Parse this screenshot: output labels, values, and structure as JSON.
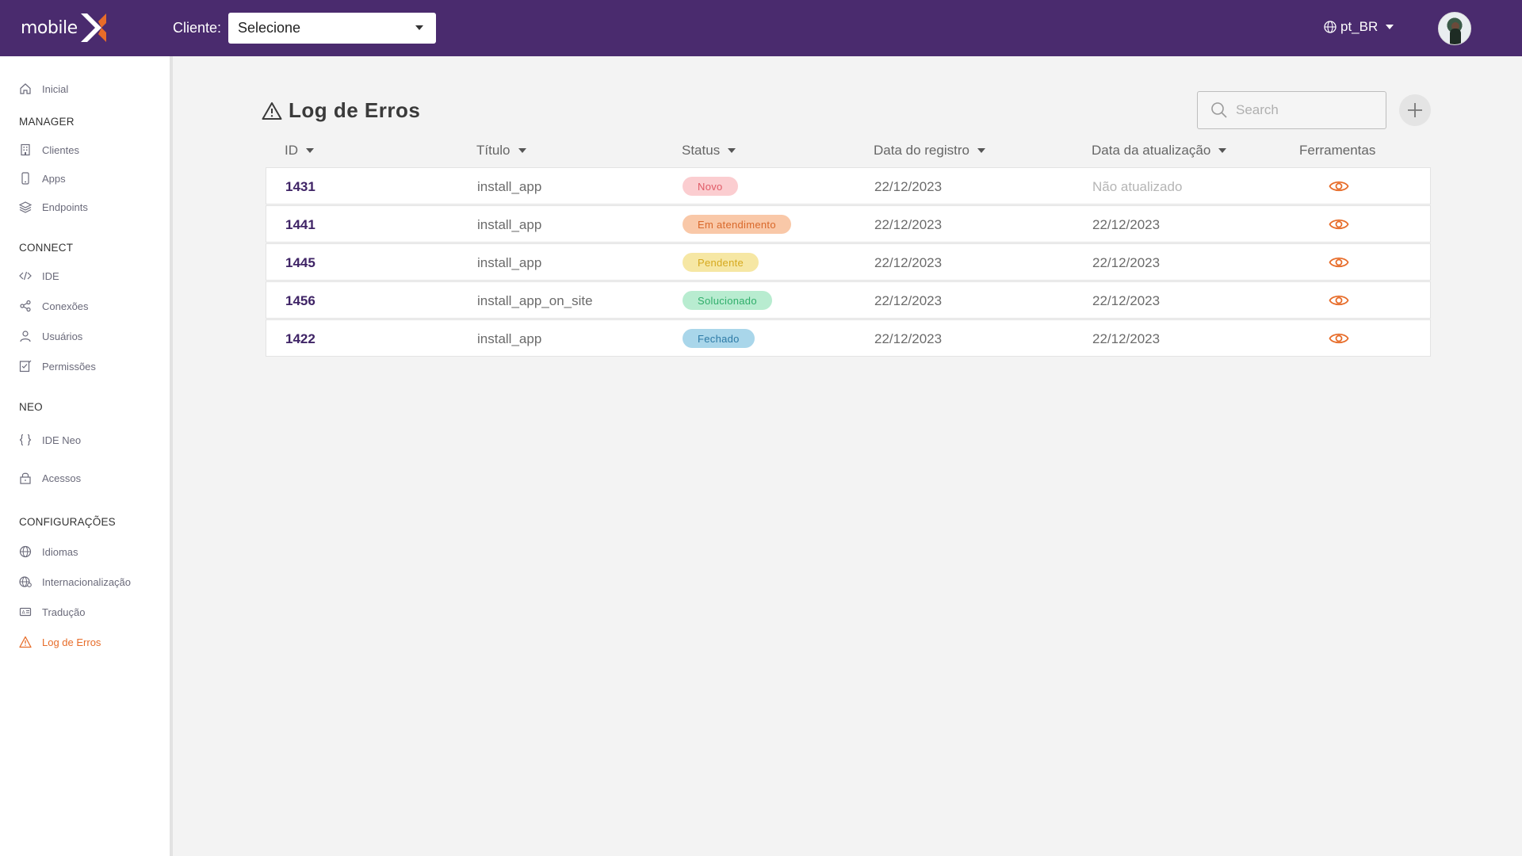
{
  "header": {
    "logo_text": "mobile",
    "client_label": "Cliente:",
    "client_select_value": "Selecione",
    "language": "pt_BR"
  },
  "sidebar": {
    "home": "Inicial",
    "sections": {
      "manager": "MANAGER",
      "connect": "CONNECT",
      "neo": "NEO",
      "config": "CONFIGURAÇÕES"
    },
    "items": {
      "clientes": "Clientes",
      "apps": "Apps",
      "endpoints": "Endpoints",
      "ide": "IDE",
      "conexoes": "Conexões",
      "usuarios": "Usuários",
      "permissoes": "Permissões",
      "ide_neo": "IDE Neo",
      "acessos": "Acessos",
      "idiomas": "Idiomas",
      "internacionalizacao": "Internacionalização",
      "traducao": "Tradução",
      "log_erros": "Log de Erros"
    }
  },
  "main": {
    "title": "Log de Erros",
    "search_placeholder": "Search",
    "columns": {
      "id": "ID",
      "titulo": "Título",
      "status": "Status",
      "data_registro": "Data do registro",
      "data_atualizacao": "Data da atualização",
      "ferramentas": "Ferramentas"
    },
    "rows": [
      {
        "id": "1431",
        "title": "install_app",
        "status": "Novo",
        "created": "22/12/2023",
        "updated": "Não atualizado"
      },
      {
        "id": "1441",
        "title": "install_app",
        "status": "Em atendimento",
        "created": "22/12/2023",
        "updated": "22/12/2023"
      },
      {
        "id": "1445",
        "title": "install_app",
        "status": "Pendente",
        "created": "22/12/2023",
        "updated": "22/12/2023"
      },
      {
        "id": "1456",
        "title": "install_app_on_site",
        "status": "Solucionado",
        "created": "22/12/2023",
        "updated": "22/12/2023"
      },
      {
        "id": "1422",
        "title": "install_app",
        "status": "Fechado",
        "created": "22/12/2023",
        "updated": "22/12/2023"
      }
    ]
  },
  "colors": {
    "header_bg": "#4a2b6e",
    "accent": "#e76c29",
    "status": {
      "novo": {
        "bg": "#fbcdd0",
        "fg": "#e05a66"
      },
      "em_atendimento": {
        "bg": "#f9c8a8",
        "fg": "#d9682a"
      },
      "pendente": {
        "bg": "#f6e7a4",
        "fg": "#d6a91f"
      },
      "solucionado": {
        "bg": "#b8ecd0",
        "fg": "#2fae6a"
      },
      "fechado": {
        "bg": "#a9d6ea",
        "fg": "#2d7aa6"
      }
    }
  }
}
